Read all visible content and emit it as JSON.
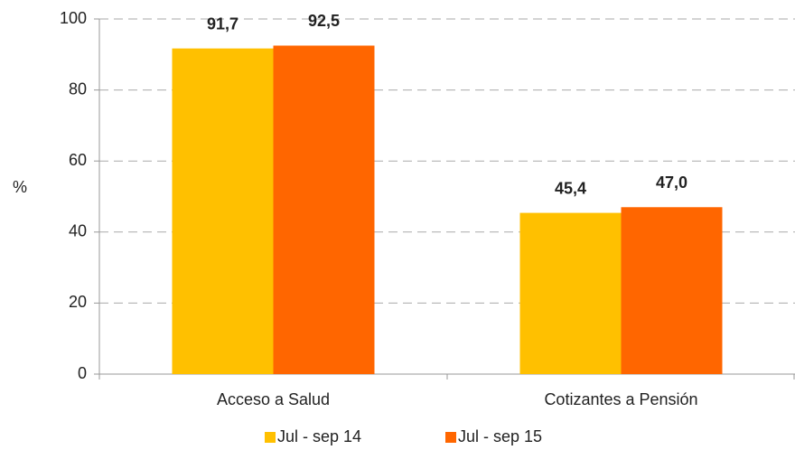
{
  "chart_data": {
    "type": "bar",
    "categories": [
      "Acceso a Salud",
      "Cotizantes a Pensión"
    ],
    "series": [
      {
        "name": "Jul - sep 14",
        "color": "#ffc000",
        "values": [
          91.7,
          45.4
        ],
        "value_labels": [
          "91,7",
          "45,4"
        ]
      },
      {
        "name": "Jul - sep 15",
        "color": "#ff6600",
        "values": [
          92.5,
          47.0
        ],
        "value_labels": [
          "92,5",
          "47,0"
        ]
      }
    ],
    "ylabel": "%",
    "ylim": [
      0,
      100
    ],
    "yticks": [
      0,
      20,
      40,
      60,
      80,
      100
    ],
    "grid": true,
    "legend": "bottom"
  }
}
